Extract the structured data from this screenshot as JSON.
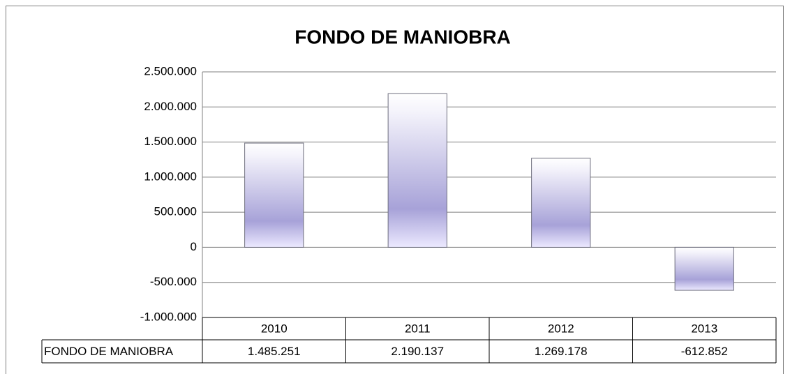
{
  "chart_data": {
    "type": "bar",
    "title": "FONDO DE MANIOBRA",
    "categories": [
      "2010",
      "2011",
      "2012",
      "2013"
    ],
    "series": [
      {
        "name": "FONDO DE MANIOBRA",
        "color": "#a7a2d8",
        "values": [
          1485251,
          2190137,
          1269178,
          -612852
        ],
        "value_labels": [
          "1.485.251",
          "2.190.137",
          "1.269.178",
          "-612.852"
        ]
      }
    ],
    "ylim": [
      -1000000,
      2500000
    ],
    "yticks": [
      {
        "value": -1000000,
        "label": "-1.000.000"
      },
      {
        "value": -500000,
        "label": "-500.000"
      },
      0,
      {
        "value": 500000,
        "label": "500.000"
      },
      {
        "value": 1000000,
        "label": "1.000.000"
      },
      {
        "value": 1500000,
        "label": "1.500.000"
      },
      {
        "value": 2000000,
        "label": "2.000.000"
      },
      {
        "value": 2500000,
        "label": "2.500.000"
      }
    ],
    "grid": true
  }
}
